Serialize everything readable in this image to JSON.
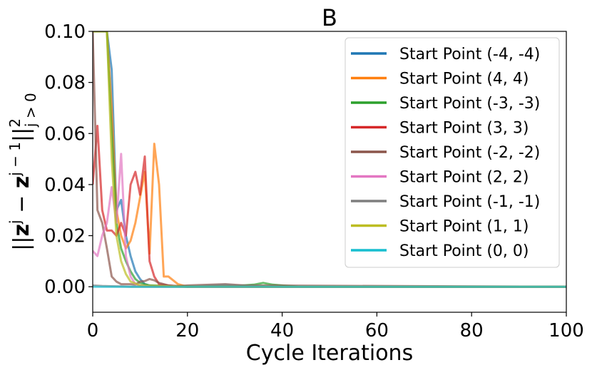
{
  "chart_data": {
    "type": "line",
    "title": "B",
    "xlabel": "Cycle Iterations",
    "ylabel_parts": [
      "||",
      "z",
      "j",
      " − ",
      "z",
      "j − 1",
      "||",
      "2",
      "j > 0"
    ],
    "xlim": [
      0,
      100
    ],
    "ylim": [
      -0.01,
      0.1
    ],
    "xticks": [
      0,
      20,
      40,
      60,
      80,
      100
    ],
    "xtick_labels": [
      "0",
      "20",
      "40",
      "60",
      "80",
      "100"
    ],
    "yticks": [
      0.0,
      0.02,
      0.04,
      0.06,
      0.08,
      0.1
    ],
    "ytick_labels": [
      "0.00",
      "0.02",
      "0.04",
      "0.06",
      "0.08",
      "0.10"
    ],
    "legend_position": "top-right",
    "series": [
      {
        "name": "Start Point (-4, -4)",
        "color": "#1f77b4",
        "x": [
          0,
          1,
          2,
          3,
          4,
          5,
          6,
          7,
          8,
          9,
          10,
          11,
          12,
          14,
          20,
          100
        ],
        "y": [
          0.1,
          0.1,
          0.1,
          0.1,
          0.085,
          0.03,
          0.034,
          0.02,
          0.012,
          0.006,
          0.003,
          0.001,
          0.0005,
          0.0002,
          0.0,
          0.0
        ]
      },
      {
        "name": "Start Point (4, 4)",
        "color": "#ff7f0e",
        "x": [
          0,
          1,
          2,
          3,
          4,
          5,
          6,
          7,
          8,
          9,
          10,
          11,
          12,
          13,
          14,
          15,
          16,
          18,
          20,
          100
        ],
        "y": [
          0.1,
          0.1,
          0.1,
          0.1,
          0.07,
          0.03,
          0.02,
          0.015,
          0.018,
          0.025,
          0.035,
          0.045,
          0.013,
          0.056,
          0.04,
          0.004,
          0.004,
          0.001,
          0.0,
          0.0
        ]
      },
      {
        "name": "Start Point (-3, -3)",
        "color": "#2ca02c",
        "x": [
          0,
          1,
          2,
          3,
          4,
          5,
          6,
          7,
          8,
          9,
          10,
          12,
          20,
          30,
          34,
          36,
          38,
          40,
          44,
          100
        ],
        "y": [
          0.1,
          0.1,
          0.1,
          0.1,
          0.06,
          0.025,
          0.015,
          0.01,
          0.006,
          0.003,
          0.0015,
          0.0005,
          0.0002,
          0.0003,
          0.0008,
          0.0015,
          0.0008,
          0.0005,
          0.0,
          0.0
        ]
      },
      {
        "name": "Start Point (3, 3)",
        "color": "#d62728",
        "x": [
          0,
          1,
          2,
          3,
          4,
          5,
          6,
          7,
          8,
          9,
          10,
          11,
          12,
          13,
          14,
          15,
          16,
          18,
          20,
          100
        ],
        "y": [
          0.04,
          0.063,
          0.03,
          0.022,
          0.022,
          0.02,
          0.025,
          0.02,
          0.04,
          0.045,
          0.036,
          0.051,
          0.01,
          0.004,
          0.001,
          0.0008,
          0.0005,
          0.0002,
          0.0,
          0.0
        ]
      },
      {
        "name": "Start Point (-2, -2)",
        "color": "#8c564b",
        "x": [
          0,
          1,
          2,
          3,
          4,
          5,
          6,
          7,
          8,
          9,
          10,
          11,
          12,
          13,
          14,
          16,
          18,
          20,
          28,
          32,
          100
        ],
        "y": [
          0.1,
          0.03,
          0.025,
          0.015,
          0.004,
          0.002,
          0.001,
          0.001,
          0.001,
          0.0008,
          0.002,
          0.0022,
          0.003,
          0.0025,
          0.0015,
          0.0005,
          0.0002,
          0.0005,
          0.001,
          0.0005,
          0.0
        ]
      },
      {
        "name": "Start Point (2, 2)",
        "color": "#e377c2",
        "x": [
          0,
          1,
          2,
          3,
          4,
          5,
          6,
          7,
          8,
          9,
          10,
          12,
          14,
          16,
          20,
          100
        ],
        "y": [
          0.014,
          0.012,
          0.02,
          0.025,
          0.039,
          0.025,
          0.052,
          0.012,
          0.004,
          0.001,
          0.0005,
          0.0002,
          0.0001,
          0.0001,
          0.0,
          0.0
        ]
      },
      {
        "name": "Start Point (-1, -1)",
        "color": "#7f7f7f",
        "x": [
          0,
          2,
          4,
          6,
          8,
          10,
          12,
          16,
          20,
          26,
          28,
          30,
          34,
          40,
          100
        ],
        "y": [
          0.0005,
          0.0003,
          0.0002,
          0.0001,
          0.0,
          0.0,
          0.0,
          0.0,
          0.0,
          0.0006,
          0.0008,
          0.0005,
          0.0003,
          0.0,
          0.0
        ]
      },
      {
        "name": "Start Point (1, 1)",
        "color": "#bcbd22",
        "x": [
          0,
          1,
          2,
          3,
          4,
          5,
          6,
          7,
          8,
          10,
          20,
          100
        ],
        "y": [
          0.1,
          0.1,
          0.1,
          0.1,
          0.05,
          0.02,
          0.01,
          0.005,
          0.002,
          0.0005,
          0.0,
          0.0
        ]
      },
      {
        "name": "Start Point (0, 0)",
        "color": "#17becf",
        "x": [
          0,
          10,
          20,
          100
        ],
        "y": [
          0.0,
          0.0,
          0.0,
          0.0
        ]
      }
    ]
  }
}
